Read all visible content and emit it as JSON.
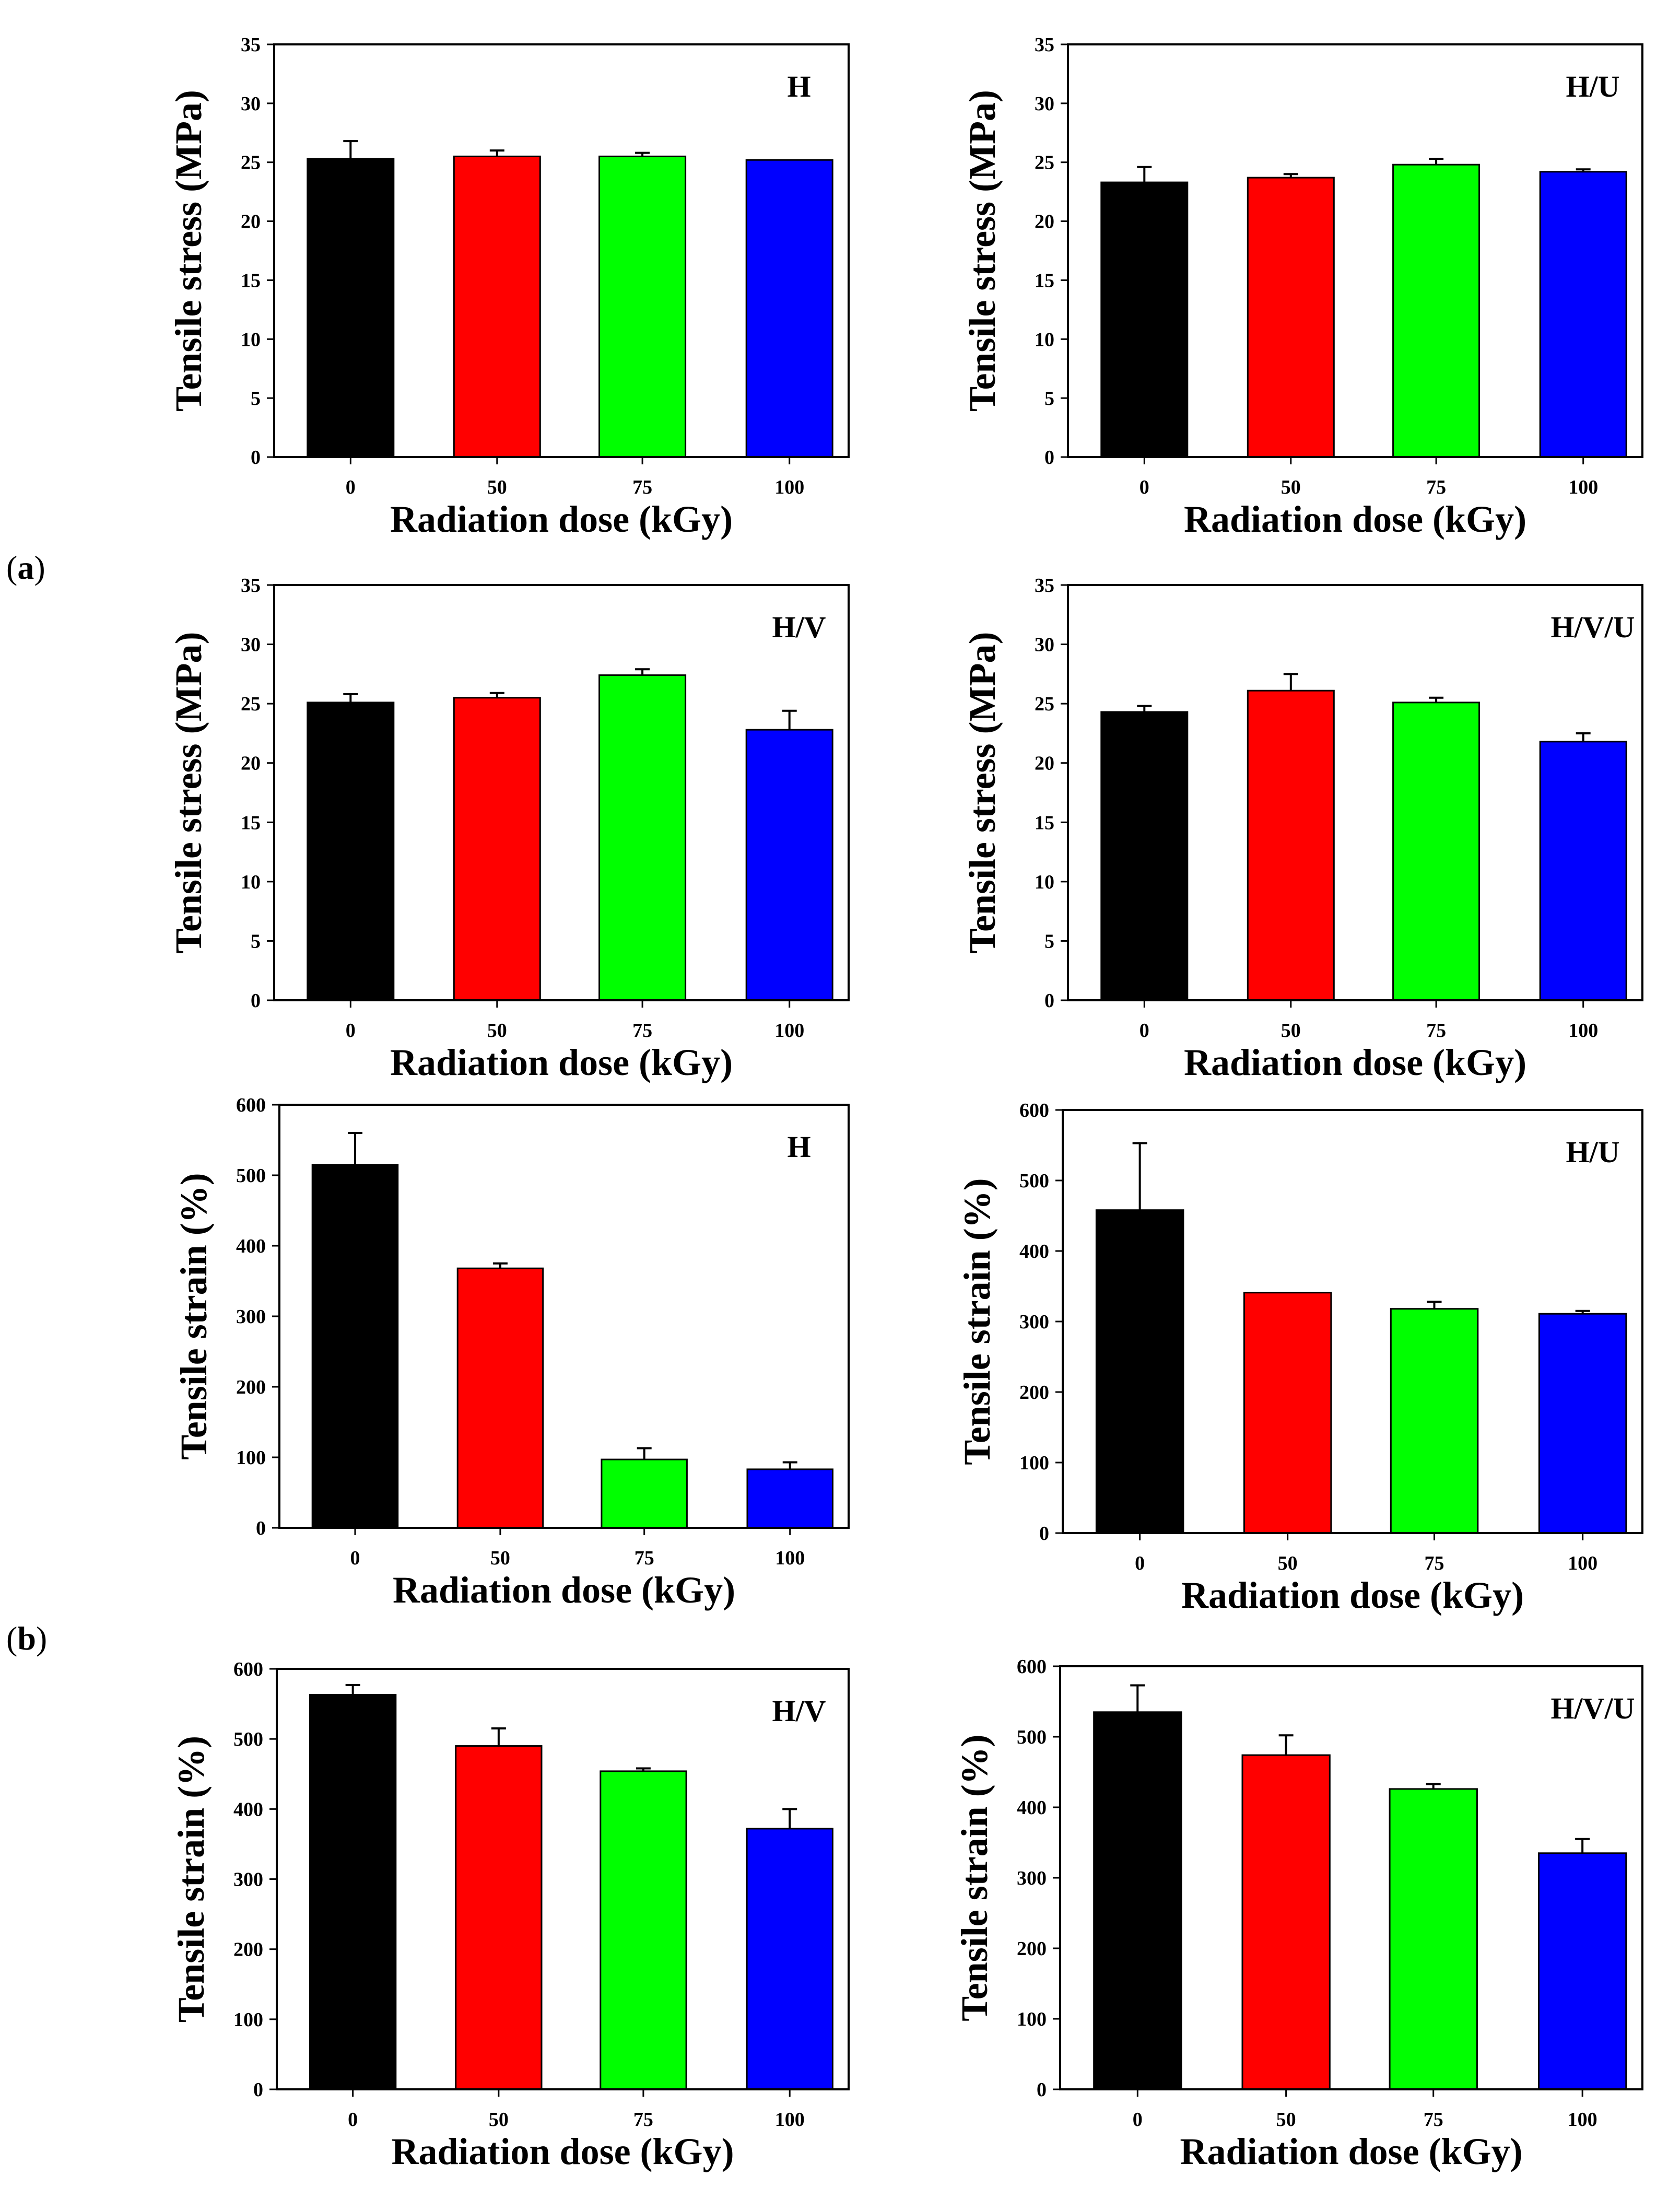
{
  "figure_labels": {
    "a": {
      "open": "(",
      "letter": "a",
      "close": ")"
    },
    "b": {
      "open": "(",
      "letter": "b",
      "close": ")"
    }
  },
  "chart_data": [
    {
      "type": "bar",
      "title": "H",
      "categories": [
        "0",
        "50",
        "75",
        "100"
      ],
      "values": [
        25.3,
        25.5,
        25.5,
        25.2
      ],
      "errors": [
        1.5,
        0.5,
        0.3,
        0.0
      ],
      "colors": [
        "#000000",
        "#ff0000",
        "#00ff00",
        "#0000ff"
      ],
      "xlabel": "Radiation dose (kGy)",
      "ylabel": "Tensile stress (MPa)",
      "ylim": [
        0,
        35
      ],
      "yticks": [
        0,
        5,
        10,
        15,
        20,
        25,
        30,
        35
      ]
    },
    {
      "type": "bar",
      "title": "H/U",
      "categories": [
        "0",
        "50",
        "75",
        "100"
      ],
      "values": [
        23.3,
        23.7,
        24.8,
        24.2
      ],
      "errors": [
        1.3,
        0.3,
        0.5,
        0.2
      ],
      "colors": [
        "#000000",
        "#ff0000",
        "#00ff00",
        "#0000ff"
      ],
      "xlabel": "Radiation dose (kGy)",
      "ylabel": "Tensile stress (MPa)",
      "ylim": [
        0,
        35
      ],
      "yticks": [
        0,
        5,
        10,
        15,
        20,
        25,
        30,
        35
      ]
    },
    {
      "type": "bar",
      "title": "H/V",
      "categories": [
        "0",
        "50",
        "75",
        "100"
      ],
      "values": [
        25.1,
        25.5,
        27.4,
        22.8
      ],
      "errors": [
        0.7,
        0.4,
        0.5,
        1.6
      ],
      "colors": [
        "#000000",
        "#ff0000",
        "#00ff00",
        "#0000ff"
      ],
      "xlabel": "Radiation dose (kGy)",
      "ylabel": "Tensile stress (MPa)",
      "ylim": [
        0,
        35
      ],
      "yticks": [
        0,
        5,
        10,
        15,
        20,
        25,
        30,
        35
      ]
    },
    {
      "type": "bar",
      "title": "H/V/U",
      "categories": [
        "0",
        "50",
        "75",
        "100"
      ],
      "values": [
        24.3,
        26.1,
        25.1,
        21.8
      ],
      "errors": [
        0.5,
        1.4,
        0.4,
        0.7
      ],
      "colors": [
        "#000000",
        "#ff0000",
        "#00ff00",
        "#0000ff"
      ],
      "xlabel": "Radiation dose (kGy)",
      "ylabel": "Tensile stress (MPa)",
      "ylim": [
        0,
        35
      ],
      "yticks": [
        0,
        5,
        10,
        15,
        20,
        25,
        30,
        35
      ]
    },
    {
      "type": "bar",
      "title": "H",
      "categories": [
        "0",
        "50",
        "75",
        "100"
      ],
      "values": [
        515,
        368,
        97,
        83
      ],
      "errors": [
        45,
        7,
        16,
        10
      ],
      "colors": [
        "#000000",
        "#ff0000",
        "#00ff00",
        "#0000ff"
      ],
      "xlabel": "Radiation dose (kGy)",
      "ylabel": "Tensile strain (%)",
      "ylim": [
        0,
        600
      ],
      "yticks": [
        0,
        100,
        200,
        300,
        400,
        500,
        600
      ]
    },
    {
      "type": "bar",
      "title": "H/U",
      "categories": [
        "0",
        "50",
        "75",
        "100"
      ],
      "values": [
        458,
        341,
        318,
        311
      ],
      "errors": [
        95,
        0,
        10,
        4
      ],
      "colors": [
        "#000000",
        "#ff0000",
        "#00ff00",
        "#0000ff"
      ],
      "xlabel": "Radiation dose (kGy)",
      "ylabel": "Tensile strain (%)",
      "ylim": [
        0,
        600
      ],
      "yticks": [
        0,
        100,
        200,
        300,
        400,
        500,
        600
      ]
    },
    {
      "type": "bar",
      "title": "H/V",
      "categories": [
        "0",
        "50",
        "75",
        "100"
      ],
      "values": [
        563,
        490,
        454,
        372
      ],
      "errors": [
        14,
        25,
        4,
        28
      ],
      "colors": [
        "#000000",
        "#ff0000",
        "#00ff00",
        "#0000ff"
      ],
      "xlabel": "Radiation dose (kGy)",
      "ylabel": "Tensile strain (%)",
      "ylim": [
        0,
        600
      ],
      "yticks": [
        0,
        100,
        200,
        300,
        400,
        500,
        600
      ]
    },
    {
      "type": "bar",
      "title": "H/V/U",
      "categories": [
        "0",
        "50",
        "75",
        "100"
      ],
      "values": [
        535,
        474,
        426,
        335
      ],
      "errors": [
        38,
        28,
        7,
        20
      ],
      "colors": [
        "#000000",
        "#ff0000",
        "#00ff00",
        "#0000ff"
      ],
      "xlabel": "Radiation dose (kGy)",
      "ylabel": "Tensile strain (%)",
      "ylim": [
        0,
        600
      ],
      "yticks": [
        0,
        100,
        200,
        300,
        400,
        500,
        600
      ]
    }
  ]
}
